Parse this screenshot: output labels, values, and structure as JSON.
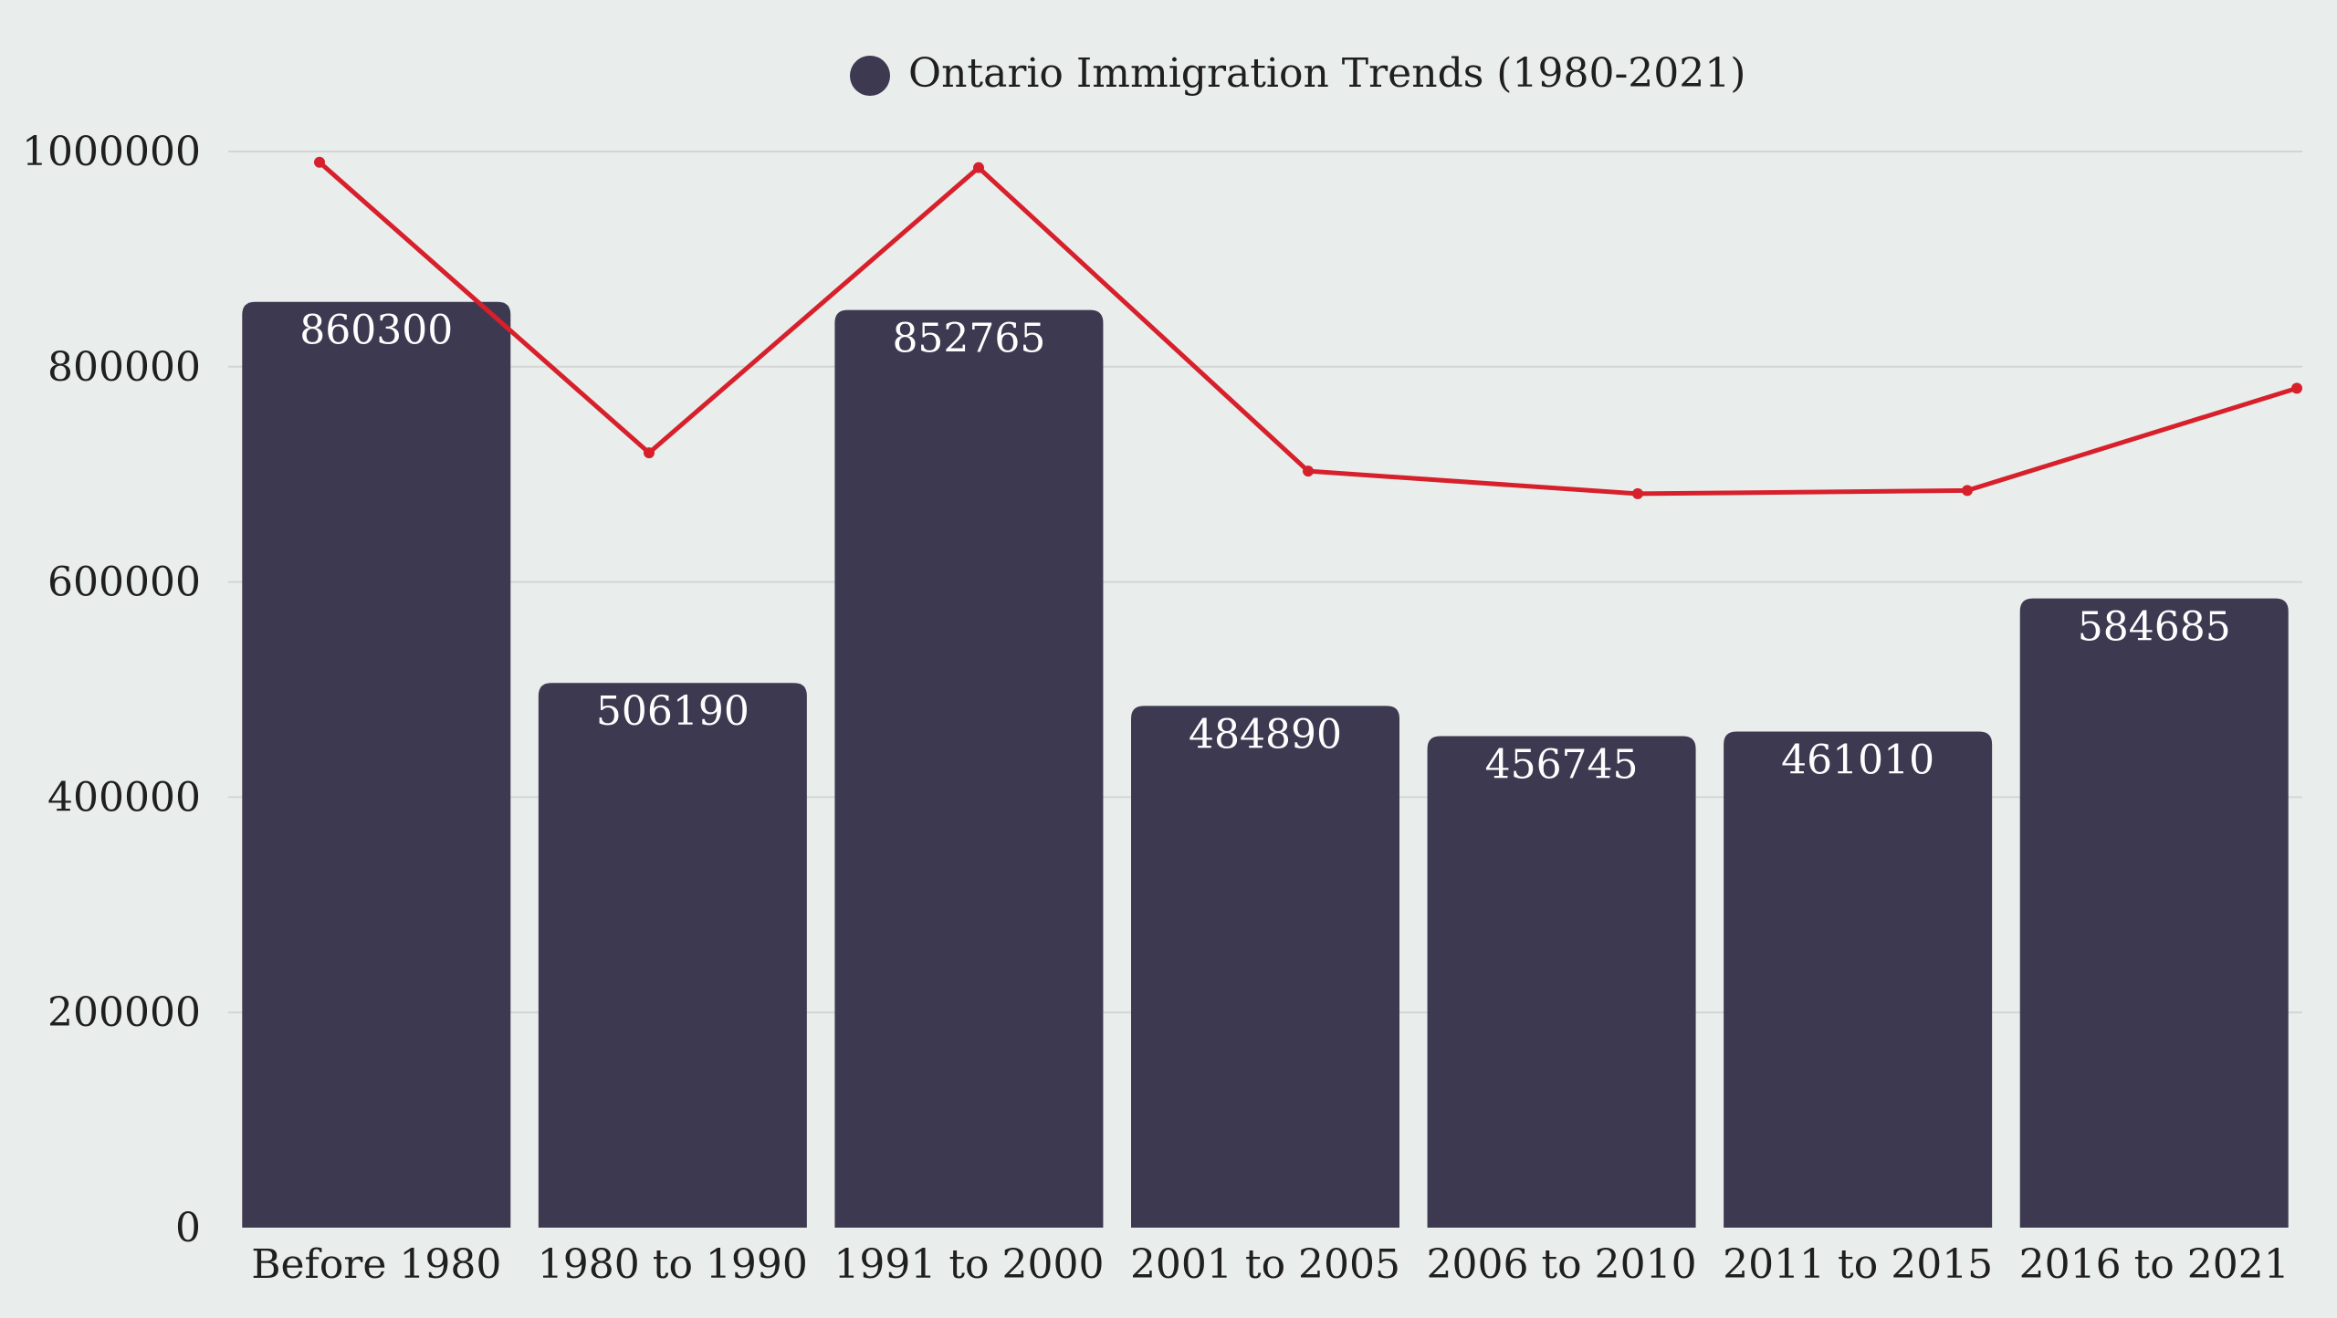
{
  "chart_data": {
    "type": "bar",
    "legend": {
      "label": "Ontario Immigration Trends (1980-2021)",
      "position": "top-center"
    },
    "categories": [
      "Before 1980",
      "1980 to 1990",
      "1991 to 2000",
      "2001 to 2005",
      "2006 to 2010",
      "2011 to 2015",
      "2016 to 2021"
    ],
    "series": [
      {
        "type": "bar",
        "values": [
          860300,
          506190,
          852765,
          484890,
          456745,
          461010,
          584685
        ],
        "color": "#3d3950",
        "data_labels": true
      },
      {
        "type": "line",
        "values": [
          990000,
          720000,
          985000,
          703000,
          682000,
          685000,
          780000
        ],
        "color": "#d7202b",
        "data_labels": false
      }
    ],
    "y_ticks": [
      "0",
      "200000",
      "400000",
      "600000",
      "800000",
      "1000000"
    ],
    "ylim": [
      0,
      1000000
    ],
    "grid": true,
    "xlabel": "",
    "ylabel": ""
  }
}
